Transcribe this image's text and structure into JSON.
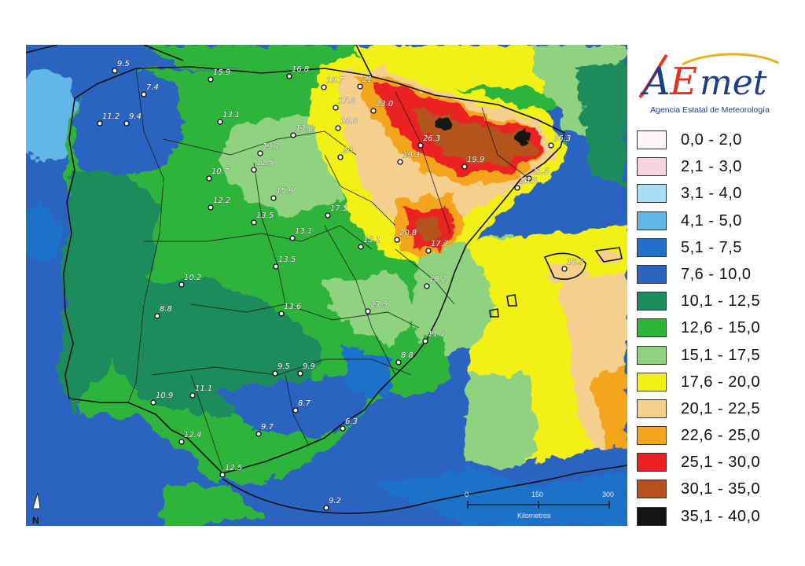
{
  "logo": {
    "text_parts": [
      "A",
      "E",
      "met"
    ],
    "subtitle": "Agencia Estatal de Meteorología"
  },
  "legend": [
    {
      "label": "0,0 - 2,0",
      "color": "#fff6fa"
    },
    {
      "label": "2,1 - 3,0",
      "color": "#f9d3e2"
    },
    {
      "label": "3,1 - 4,0",
      "color": "#a9dff4"
    },
    {
      "label": "4,1 - 5,0",
      "color": "#61b7e8"
    },
    {
      "label": "5,1 - 7,5",
      "color": "#1f71c9"
    },
    {
      "label": "7,6 - 10,0",
      "color": "#2a63c0"
    },
    {
      "label": "10,1 - 12,5",
      "color": "#1c8c5c"
    },
    {
      "label": "12,6 - 15,0",
      "color": "#2fb43a"
    },
    {
      "label": "15,1 - 17,5",
      "color": "#8fd27f"
    },
    {
      "label": "17,6 - 20,0",
      "color": "#f3f014"
    },
    {
      "label": "20,1 - 22,5",
      "color": "#f4cf8d"
    },
    {
      "label": "22,6 - 25,0",
      "color": "#f5a51c"
    },
    {
      "label": "25,1 - 30,0",
      "color": "#ec2020"
    },
    {
      "label": "30,1 - 35,0",
      "color": "#b5521e"
    },
    {
      "label": "35,1 - 40,0",
      "color": "#141414"
    }
  ],
  "scale_bar": {
    "ticks": [
      "0",
      "150",
      "300"
    ],
    "unit": "Kilometros"
  },
  "north_label": "N",
  "stations": [
    {
      "label": "9.5"
    },
    {
      "label": "7.4"
    },
    {
      "label": "11.2"
    },
    {
      "label": "9.4"
    },
    {
      "label": "15.9"
    },
    {
      "label": "13.1"
    },
    {
      "label": "16.8"
    },
    {
      "label": "19.7"
    },
    {
      "label": "21"
    },
    {
      "label": "17.8"
    },
    {
      "label": "23.0"
    },
    {
      "label": "18.8"
    },
    {
      "label": "13.6"
    },
    {
      "label": "13.1"
    },
    {
      "label": "12.5"
    },
    {
      "label": "10.7"
    },
    {
      "label": "12.2"
    },
    {
      "label": "20"
    },
    {
      "label": "26.3"
    },
    {
      "label": "26.3"
    },
    {
      "label": "19.3"
    },
    {
      "label": "19.9"
    },
    {
      "label": "21.5"
    },
    {
      "label": "20.5"
    },
    {
      "label": "15.9"
    },
    {
      "label": "17.5"
    },
    {
      "label": "13.5"
    },
    {
      "label": "13.1"
    },
    {
      "label": "20.8"
    },
    {
      "label": "15.1"
    },
    {
      "label": "17.7"
    },
    {
      "label": "18.2"
    },
    {
      "label": "13.5"
    },
    {
      "label": "10.2"
    },
    {
      "label": "8.8"
    },
    {
      "label": "13.6"
    },
    {
      "label": "13.9"
    },
    {
      "label": "11.1"
    },
    {
      "label": "8.8"
    },
    {
      "label": "9.5"
    },
    {
      "label": "9.9"
    },
    {
      "label": "10.9"
    },
    {
      "label": "11.1"
    },
    {
      "label": "8.7"
    },
    {
      "label": "6.3"
    },
    {
      "label": "9.7"
    },
    {
      "label": "12.4"
    },
    {
      "label": "12.5"
    },
    {
      "label": "9.2"
    },
    {
      "label": "18.3"
    }
  ]
}
